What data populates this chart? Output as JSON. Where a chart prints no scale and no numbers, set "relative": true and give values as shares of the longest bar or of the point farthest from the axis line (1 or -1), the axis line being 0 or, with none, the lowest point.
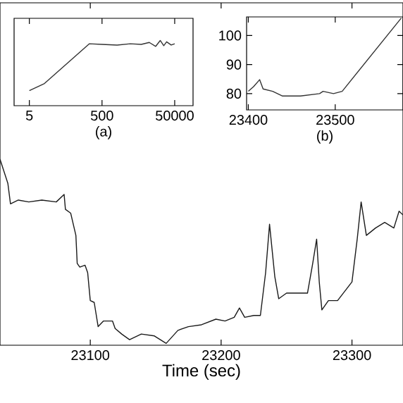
{
  "chart_data": [
    {
      "type": "line",
      "title": "(a)",
      "log": "x",
      "relative": true,
      "xlim": [
        1.9,
        160000
      ],
      "xticks": [
        5,
        500,
        50000
      ],
      "color": "#333333",
      "x": [
        5,
        13,
        225,
        500,
        1300,
        3000,
        6000,
        10000,
        15000,
        20000,
        25000,
        30000,
        40000,
        50000
      ],
      "values": [
        0.23,
        0.34,
        0.95,
        0.94,
        0.93,
        0.95,
        0.94,
        0.97,
        0.91,
        1.0,
        0.92,
        0.98,
        0.93,
        0.95
      ]
    },
    {
      "type": "line",
      "title": "(b)",
      "xlim": [
        23398,
        23578
      ],
      "xticks": [
        23400,
        23500
      ],
      "ylim": [
        74.4,
        106.4
      ],
      "yticks": [
        80,
        90,
        100
      ],
      "color": "#333333",
      "x": [
        23400,
        23406,
        23413,
        23417,
        23428,
        23439,
        23460,
        23482,
        23486,
        23498,
        23508,
        23576
      ],
      "values": [
        80.8,
        82.4,
        84.8,
        81.6,
        80.8,
        79.2,
        79.2,
        80,
        80.8,
        80,
        80.8,
        106
      ]
    },
    {
      "type": "line",
      "xlabel": "Time (sec)",
      "relative": true,
      "xlim": [
        23031,
        23339
      ],
      "xticks": [
        23100,
        23200,
        23300
      ],
      "color": "#1a1a1a",
      "x": [
        23031,
        23037,
        23039,
        23045,
        23053,
        23063,
        23074,
        23080,
        23081,
        23085,
        23089,
        23090,
        23092,
        23096,
        23098,
        23100,
        23103,
        23106,
        23110,
        23117,
        23119,
        23124,
        23130,
        23139,
        23149,
        23158,
        23167,
        23175,
        23185,
        23196,
        23203,
        23210,
        23214,
        23218,
        23225,
        23230,
        23234,
        23237,
        23241,
        23244,
        23250,
        23257,
        23266,
        23270,
        23273,
        23275,
        23277,
        23282,
        23289,
        23300,
        23304,
        23307,
        23311,
        23318,
        23325,
        23332,
        23336,
        23339
      ],
      "values": [
        1.0,
        0.87,
        0.76,
        0.78,
        0.77,
        0.78,
        0.77,
        0.81,
        0.73,
        0.71,
        0.59,
        0.44,
        0.42,
        0.43,
        0.39,
        0.24,
        0.23,
        0.1,
        0.13,
        0.13,
        0.09,
        0.06,
        0.03,
        0.06,
        0.05,
        0.01,
        0.08,
        0.1,
        0.11,
        0.14,
        0.13,
        0.15,
        0.2,
        0.15,
        0.16,
        0.16,
        0.39,
        0.65,
        0.37,
        0.25,
        0.28,
        0.28,
        0.28,
        0.44,
        0.57,
        0.34,
        0.19,
        0.24,
        0.24,
        0.34,
        0.57,
        0.77,
        0.59,
        0.63,
        0.66,
        0.63,
        0.72,
        0.7
      ]
    }
  ]
}
